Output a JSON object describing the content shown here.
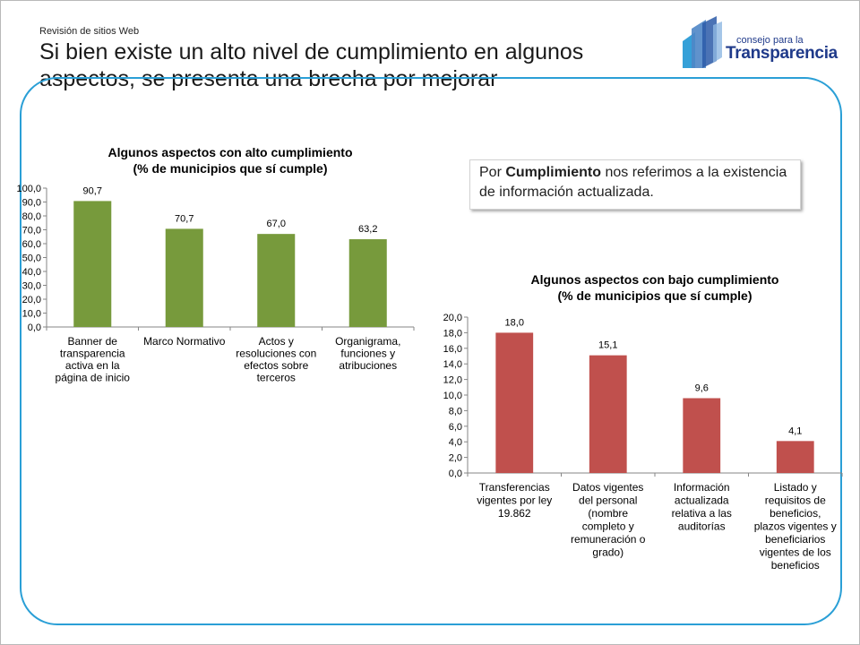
{
  "header": {
    "kicker": "Revisión de sitios Web",
    "title": "Si bien existe un alto nivel de cumplimiento en algunos aspectos, se presenta una brecha por mejorar"
  },
  "logo": {
    "line1": "consejo para la",
    "line2": "Transparencia"
  },
  "note": {
    "prefix": "Por ",
    "bold": "Cumplimiento",
    "suffix": " nos referimos a la existencia de información actualizada."
  },
  "colors": {
    "accent_border": "#2a9fd6",
    "bar_high": "#779a3c",
    "bar_low": "#c0504d",
    "logo_blue": "#1f3a8a"
  },
  "chart_data": [
    {
      "type": "bar",
      "title": "Algunos aspectos con alto cumplimiento",
      "subtitle": "(% de municipios que sí cumple)",
      "categories": [
        [
          "Banner de",
          "transparencia",
          "activa en la",
          "página de inicio"
        ],
        [
          "Marco Normativo"
        ],
        [
          "Actos y",
          "resoluciones con",
          "efectos sobre",
          "terceros"
        ],
        [
          "Organigrama,",
          "funciones y",
          "atribuciones"
        ]
      ],
      "values": [
        90.7,
        70.7,
        67.0,
        63.2
      ],
      "value_labels": [
        "90,7",
        "70,7",
        "67,0",
        "63,2"
      ],
      "ylim": [
        0,
        100
      ],
      "yticks": [
        "0,0",
        "10,0",
        "20,0",
        "30,0",
        "40,0",
        "50,0",
        "60,0",
        "70,0",
        "80,0",
        "90,0",
        "100,0"
      ],
      "color": "#779a3c",
      "grid": false
    },
    {
      "type": "bar",
      "title": "Algunos aspectos con bajo cumplimiento",
      "subtitle": "(% de municipios que sí cumple)",
      "categories": [
        [
          "Transferencias",
          "vigentes por ley",
          "19.862"
        ],
        [
          "Datos vigentes",
          "del personal",
          "(nombre",
          "completo y",
          "remuneración o",
          "grado)"
        ],
        [
          "Información",
          "actualizada",
          "relativa a las",
          "auditorías"
        ],
        [
          "Listado y",
          "requisitos de",
          "beneficios,",
          "plazos vigentes y",
          "beneficiarios",
          "vigentes de los",
          "beneficios"
        ]
      ],
      "values": [
        18.0,
        15.1,
        9.6,
        4.1
      ],
      "value_labels": [
        "18,0",
        "15,1",
        "9,6",
        "4,1"
      ],
      "ylim": [
        0,
        20
      ],
      "yticks": [
        "0,0",
        "2,0",
        "4,0",
        "6,0",
        "8,0",
        "10,0",
        "12,0",
        "14,0",
        "16,0",
        "18,0",
        "20,0"
      ],
      "color": "#c0504d",
      "grid": false
    }
  ]
}
